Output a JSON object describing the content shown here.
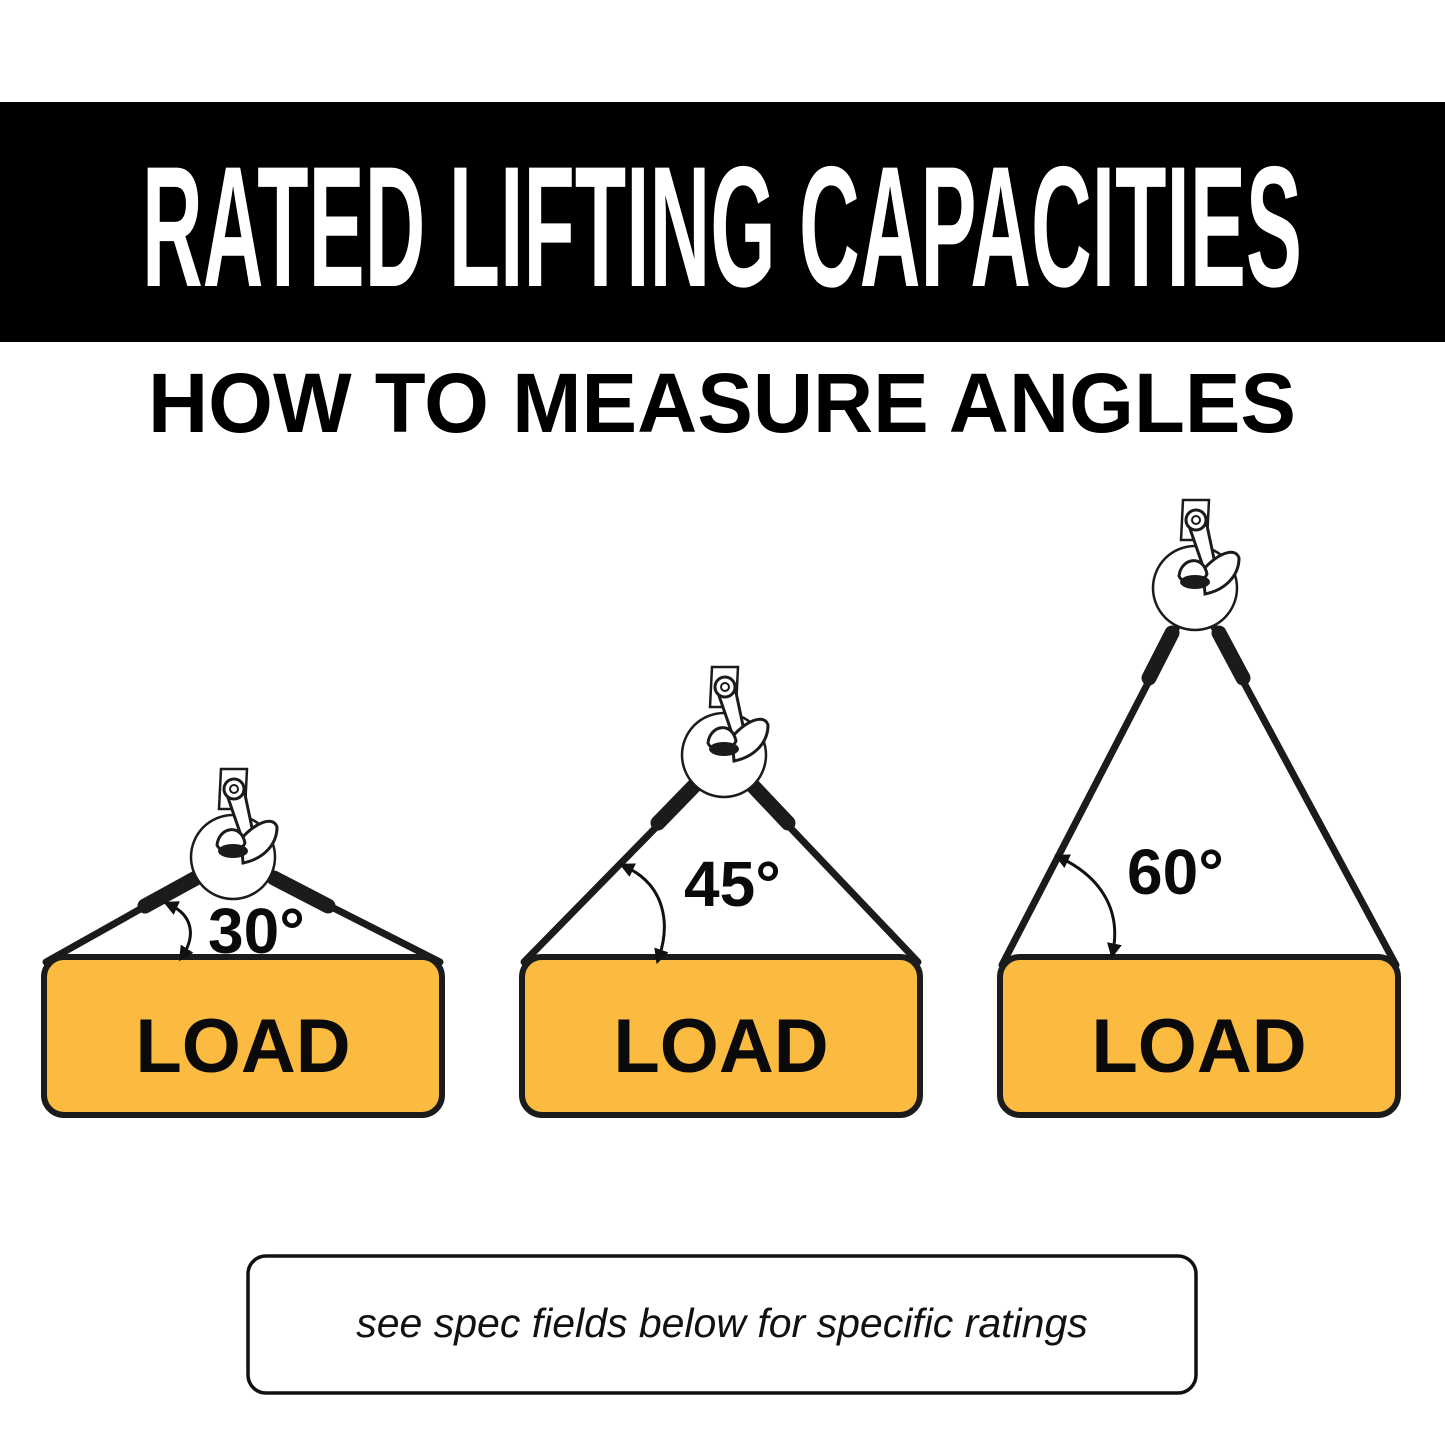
{
  "header": {
    "title": "RATED LIFTING CAPACITIES",
    "subtitle": "HOW TO MEASURE ANGLES"
  },
  "diagrams": [
    {
      "angle": "30°",
      "load_label": "LOAD"
    },
    {
      "angle": "45°",
      "load_label": "LOAD"
    },
    {
      "angle": "60°",
      "load_label": "LOAD"
    }
  ],
  "note": "see spec fields below for specific ratings",
  "colors": {
    "header_bg": "#000000",
    "load_fill": "#FBBB40",
    "line": "#1B1B1B"
  }
}
